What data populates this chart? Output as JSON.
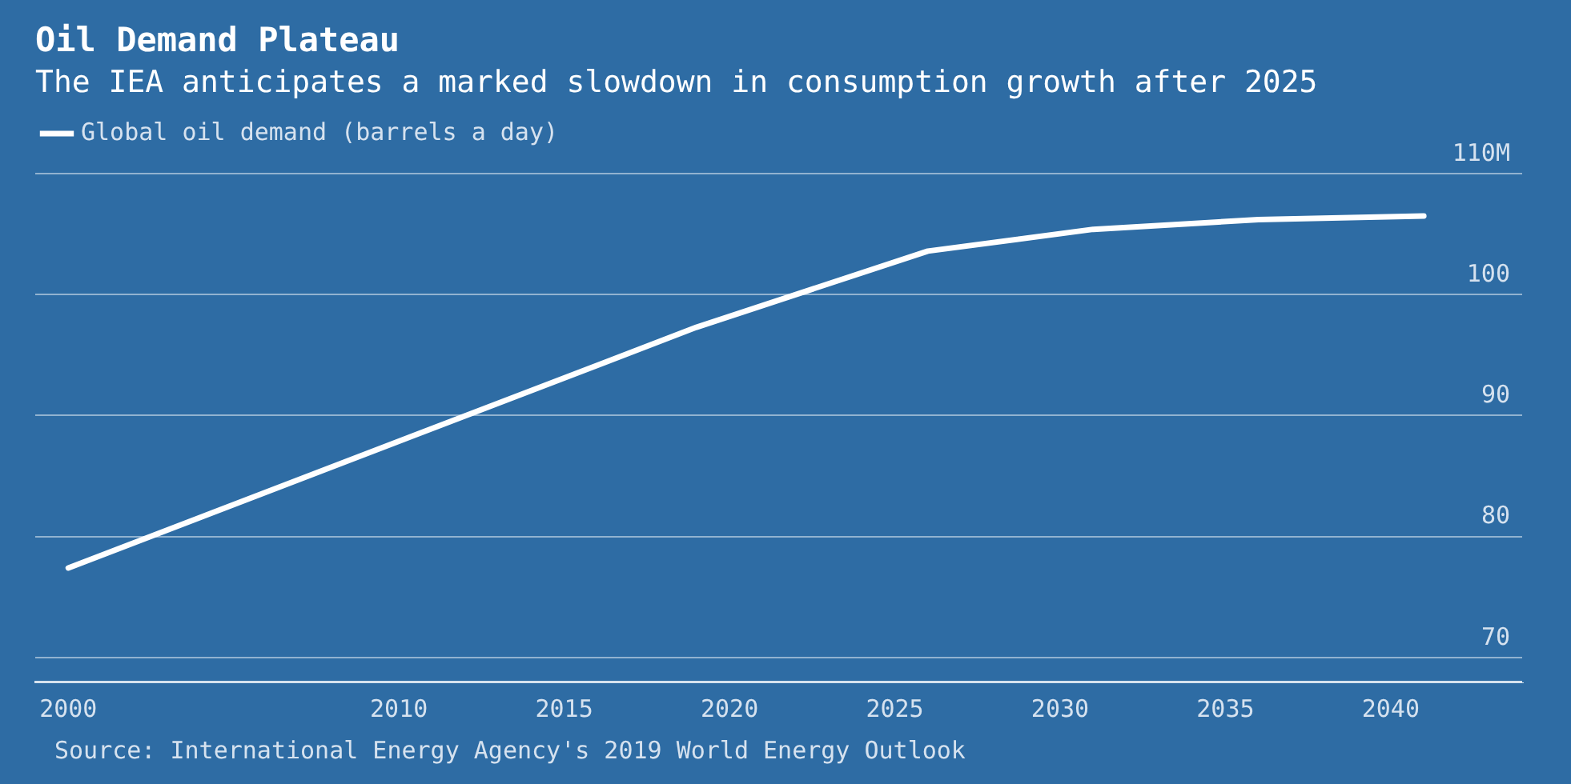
{
  "chart_data": {
    "type": "line",
    "title": "Oil Demand Plateau",
    "subtitle": "The IEA anticipates a marked slowdown in consumption growth after 2025",
    "x": [
      2000,
      2019,
      2026,
      2031,
      2036,
      2041
    ],
    "series": [
      {
        "name": "Global oil demand (barrels a day)",
        "color": "#ffffff",
        "values": [
          77.4,
          97.3,
          103.6,
          105.4,
          106.2,
          106.5
        ]
      }
    ],
    "xlim": [
      1999,
      2044
    ],
    "xticks": [
      2000,
      2010,
      2015,
      2020,
      2025,
      2030,
      2035,
      2040
    ],
    "ylim": [
      68,
      111
    ],
    "yticks": [
      70,
      80,
      90,
      100,
      {
        "value": 110,
        "label": "110M"
      }
    ],
    "grid": "y",
    "legend": "top left",
    "marker": "none",
    "line_style": "solid",
    "annotations": [
      "Source: International Energy Agency's 2019 World Energy Outlook"
    ]
  }
}
